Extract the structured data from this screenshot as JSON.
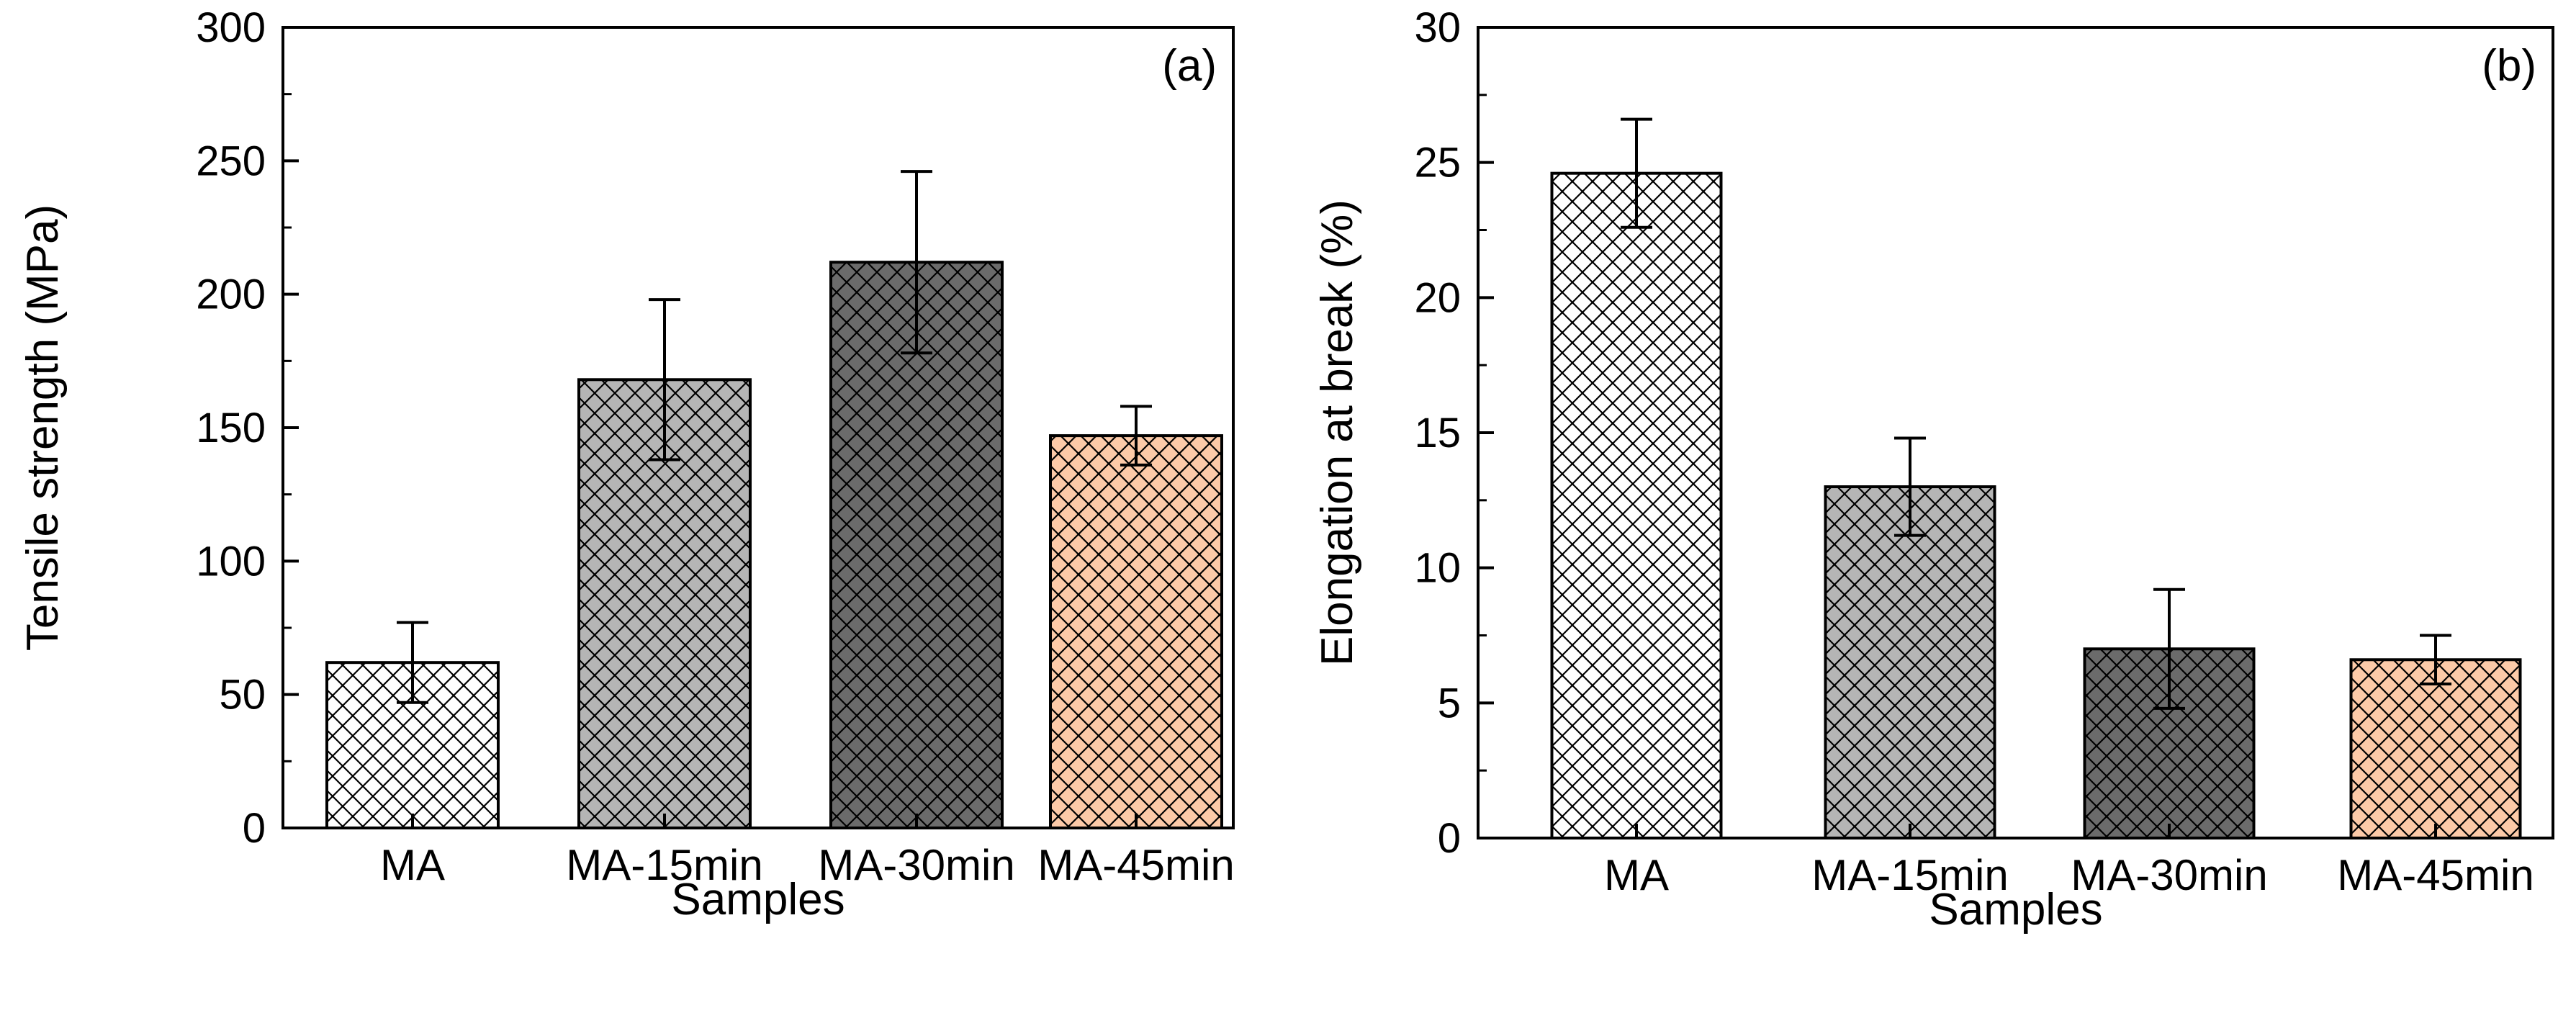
{
  "chart_data": [
    {
      "panel": "(a)",
      "type": "bar",
      "title": "",
      "xlabel": "Samples",
      "ylabel": "Tensile strength (MPa)",
      "ylim": [
        0,
        300
      ],
      "yticks": [
        0,
        50,
        100,
        150,
        200,
        250,
        300
      ],
      "ytick_labels": [
        "0",
        "50",
        "100",
        "150",
        "200",
        "250",
        "300"
      ],
      "categories": [
        "MA",
        "MA-15min",
        "MA-30min",
        "MA-45min"
      ],
      "values": [
        62,
        168,
        212,
        147
      ],
      "errors": [
        15,
        30,
        34,
        11
      ],
      "colors": [
        "#ffffff",
        "#b5b5b5",
        "#6b6b6b",
        "#fccaa8"
      ],
      "hatch": "crosshatch",
      "grid": false,
      "legend": "none"
    },
    {
      "panel": "(b)",
      "type": "bar",
      "title": "",
      "xlabel": "Samples",
      "ylabel": "Elongation at break (%)",
      "ylim": [
        0,
        30
      ],
      "yticks": [
        0,
        5,
        10,
        15,
        20,
        25,
        30
      ],
      "ytick_labels": [
        "0",
        "5",
        "10",
        "15",
        "20",
        "25",
        "30"
      ],
      "categories": [
        "MA",
        "MA-15min",
        "MA-30min",
        "MA-45min"
      ],
      "values": [
        24.6,
        13.0,
        7.0,
        6.6
      ],
      "errors": [
        2.0,
        1.8,
        2.2,
        0.9
      ],
      "colors": [
        "#ffffff",
        "#b5b5b5",
        "#6b6b6b",
        "#fccaa8"
      ],
      "hatch": "crosshatch",
      "grid": false,
      "legend": "none"
    }
  ]
}
